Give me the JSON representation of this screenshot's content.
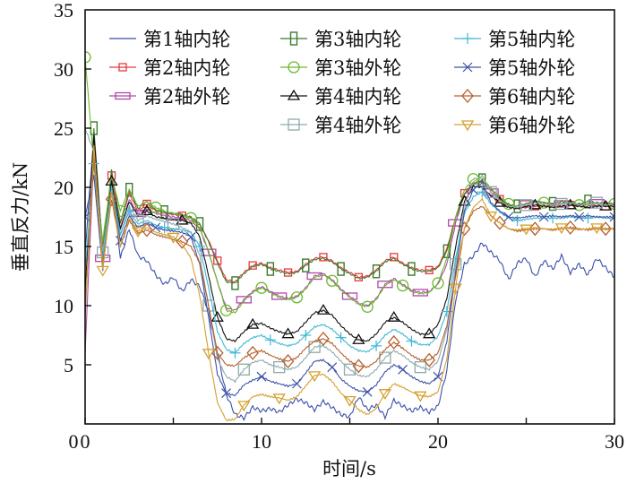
{
  "chart_data": {
    "type": "line",
    "title": "",
    "xlabel": "时间/s",
    "ylabel": "垂直反力/kN",
    "xlim": [
      0,
      30
    ],
    "ylim": [
      0,
      35
    ],
    "xticks": [
      0,
      10,
      20,
      30
    ],
    "xtick_labels": [
      "0",
      "10",
      "20",
      "30"
    ],
    "yticks": [
      5,
      10,
      15,
      20,
      25,
      30,
      35
    ],
    "ytick_labels": [
      "5",
      "10",
      "15",
      "20",
      "25",
      "30",
      "35"
    ],
    "ytick_label_zero": "0",
    "grid": false,
    "legend_position": "top",
    "x": [
      0,
      0.5,
      1,
      1.5,
      2,
      2.5,
      3,
      3.5,
      4,
      4.5,
      5,
      5.5,
      6,
      6.5,
      7,
      7.5,
      8,
      8.5,
      9,
      9.5,
      10,
      10.5,
      11,
      11.5,
      12,
      12.5,
      13,
      13.5,
      14,
      14.5,
      15,
      15.5,
      16,
      16.5,
      17,
      17.5,
      18,
      18.5,
      19,
      19.5,
      20,
      20.5,
      21,
      21.5,
      22,
      22.5,
      23,
      23.5,
      24,
      24.5,
      25,
      25.5,
      26,
      26.5,
      27,
      27.5,
      28,
      28.5,
      29,
      29.5,
      30
    ],
    "series": [
      {
        "name": "第1轴内轮",
        "color": "#3a4fa8",
        "marker": "none",
        "values": [
          14.5,
          24.5,
          13.5,
          21,
          14,
          16.5,
          14.2,
          13.8,
          12.6,
          11.8,
          12.4,
          11.2,
          12.2,
          11.6,
          9.5,
          6,
          2.5,
          0.8,
          0.5,
          1.4,
          1.1,
          1.3,
          1.0,
          1.6,
          2.1,
          1.8,
          1.2,
          1.9,
          1.4,
          0.8,
          0.6,
          2.3,
          1.2,
          1.6,
          0.6,
          2.0,
          1.5,
          1.1,
          1.4,
          1.0,
          1.5,
          4.5,
          10.5,
          13.5,
          14.2,
          15.3,
          14.5,
          13.8,
          12.2,
          13.6,
          14.0,
          12.4,
          13.8,
          13.1,
          14.2,
          12.8,
          13.5,
          12.6,
          14.0,
          13.2,
          12.4
        ]
      },
      {
        "name": "第2轴内轮",
        "color": "#e8383c",
        "marker": "square-small",
        "values": [
          10,
          24,
          15,
          21,
          17,
          19.5,
          18,
          18.6,
          18,
          17.8,
          17.7,
          17.6,
          17.4,
          16.8,
          15.5,
          13.8,
          12.2,
          12.0,
          12.8,
          13.4,
          13.6,
          13.2,
          13.0,
          12.8,
          12.9,
          13.5,
          14.0,
          14.1,
          13.8,
          13.2,
          12.8,
          12.4,
          12.5,
          13.0,
          13.8,
          14.1,
          13.6,
          13.2,
          13.0,
          13.0,
          13.3,
          14.8,
          17.5,
          19.5,
          20.4,
          20.5,
          19.8,
          19.0,
          18.4,
          18.2,
          18.3,
          18.4,
          18.5,
          18.4,
          18.4,
          18.5,
          18.4,
          18.4,
          18.5,
          18.4,
          18.5
        ]
      },
      {
        "name": "第2轴外轮",
        "color": "#b047a8",
        "marker": "rect-wide",
        "values": [
          6,
          23,
          14,
          20.5,
          16.5,
          19,
          17.8,
          18.2,
          17.8,
          17.6,
          17.5,
          17.4,
          17.2,
          16.5,
          14.5,
          12.0,
          9.8,
          9.6,
          10.5,
          11.2,
          11.6,
          11.2,
          10.8,
          10.6,
          10.8,
          11.5,
          12.5,
          12.7,
          12.2,
          11.4,
          10.8,
          10.2,
          10.0,
          10.6,
          11.8,
          12.3,
          11.8,
          11.3,
          11.1,
          11.2,
          11.8,
          13.5,
          17.0,
          19.4,
          20.2,
          20.5,
          19.6,
          19.0,
          18.5,
          18.4,
          18.6,
          18.8,
          18.7,
          18.6,
          18.6,
          18.7,
          18.6,
          18.6,
          18.7,
          18.6,
          18.6
        ]
      },
      {
        "name": "第3轴内轮",
        "color": "#3d7a2f",
        "marker": "rect-tall",
        "values": [
          9,
          25,
          14.5,
          21.5,
          17,
          19.8,
          18.2,
          18.8,
          18.1,
          17.9,
          17.8,
          17.7,
          17.5,
          16.9,
          15.4,
          13.6,
          12.0,
          11.9,
          12.7,
          13.3,
          13.5,
          13.1,
          12.9,
          12.7,
          12.8,
          13.4,
          13.9,
          14.0,
          13.7,
          13.1,
          12.7,
          12.3,
          12.4,
          12.9,
          13.7,
          14.0,
          13.5,
          13.1,
          12.9,
          12.9,
          13.2,
          14.6,
          17.4,
          19.4,
          20.3,
          20.6,
          19.9,
          19.1,
          18.5,
          18.4,
          18.6,
          18.8,
          18.7,
          18.6,
          18.8,
          18.7,
          18.6,
          18.8,
          18.7,
          18.6,
          18.6
        ]
      },
      {
        "name": "第3轴外轮",
        "color": "#6ab82e",
        "marker": "circle",
        "values": [
          31,
          22,
          15.5,
          21,
          18,
          19.8,
          18.4,
          18.8,
          18.3,
          18.0,
          17.8,
          17.6,
          17.4,
          16.6,
          14.6,
          12.0,
          9.6,
          9.4,
          10.4,
          11.1,
          11.5,
          11.1,
          10.7,
          10.5,
          10.7,
          11.4,
          12.4,
          12.6,
          12.1,
          11.3,
          10.7,
          10.1,
          9.9,
          10.5,
          11.7,
          12.2,
          11.7,
          11.2,
          11.0,
          11.1,
          11.9,
          14.0,
          17.5,
          19.8,
          20.7,
          20.8,
          19.9,
          19.2,
          18.6,
          18.4,
          18.6,
          18.8,
          18.7,
          18.5,
          18.6,
          18.6,
          18.5,
          18.6,
          18.6,
          18.5,
          18.6
        ]
      },
      {
        "name": "第4轴内轮",
        "color": "#111111",
        "marker": "triangle-up",
        "values": [
          11,
          24.5,
          14,
          20.5,
          16.5,
          18.8,
          17.6,
          18.0,
          17.5,
          17.4,
          17.3,
          17.2,
          17.0,
          15.8,
          12.5,
          9.0,
          7.2,
          7.0,
          7.8,
          8.4,
          8.5,
          8.1,
          7.8,
          7.6,
          7.8,
          8.6,
          9.4,
          9.6,
          9.2,
          8.3,
          7.6,
          7.1,
          7.0,
          7.6,
          8.6,
          9.0,
          8.6,
          8.0,
          7.6,
          7.6,
          8.4,
          10.6,
          15.0,
          18.8,
          20.1,
          20.0,
          19.3,
          18.7,
          18.3,
          18.2,
          18.4,
          18.5,
          18.4,
          18.3,
          18.4,
          18.5,
          18.4,
          18.3,
          18.4,
          18.4,
          18.4
        ]
      },
      {
        "name": "第4轴外轮",
        "color": "#8faaaa",
        "marker": "square",
        "values": [
          25,
          23,
          14.5,
          20,
          16,
          18.4,
          17.2,
          17.6,
          17.3,
          17.1,
          16.9,
          16.6,
          16.2,
          14.2,
          10.0,
          5.5,
          4.0,
          3.6,
          4.6,
          5.2,
          5.4,
          5.0,
          4.8,
          4.6,
          4.8,
          5.6,
          6.5,
          6.6,
          6.1,
          5.3,
          4.6,
          4.1,
          4.0,
          4.6,
          5.6,
          6.2,
          5.8,
          5.2,
          4.8,
          4.6,
          5.3,
          8.0,
          13.5,
          18.5,
          20.4,
          21.0,
          19.6,
          18.9,
          18.4,
          18.3,
          18.5,
          18.7,
          18.6,
          18.5,
          18.6,
          18.7,
          18.5,
          18.5,
          18.7,
          18.5,
          18.6
        ]
      },
      {
        "name": "第5轴内轮",
        "color": "#3fb7d6",
        "marker": "plus",
        "values": [
          13,
          22,
          14,
          20,
          16,
          18.0,
          16.9,
          17.2,
          16.8,
          16.6,
          16.5,
          16.4,
          16.2,
          15.0,
          11.5,
          7.8,
          6.3,
          6.0,
          6.8,
          7.3,
          7.5,
          7.1,
          6.8,
          6.6,
          6.8,
          7.5,
          8.2,
          8.4,
          8.0,
          7.3,
          6.6,
          6.2,
          6.1,
          6.6,
          7.5,
          8.0,
          7.6,
          7.0,
          6.7,
          6.7,
          7.4,
          9.5,
          14.0,
          17.8,
          19.2,
          19.6,
          18.6,
          17.9,
          17.4,
          17.2,
          17.3,
          17.4,
          17.4,
          17.4,
          17.4,
          17.5,
          17.4,
          17.4,
          17.5,
          17.4,
          17.4
        ]
      },
      {
        "name": "第5轴外轮",
        "color": "#3e53a6",
        "marker": "x",
        "values": [
          17.5,
          21,
          13,
          19.5,
          15.5,
          17.6,
          16.6,
          17.0,
          16.6,
          16.4,
          16.3,
          16.2,
          15.8,
          13.5,
          9.0,
          4.2,
          2.6,
          2.4,
          3.3,
          3.7,
          4.0,
          3.6,
          3.4,
          3.2,
          3.4,
          4.3,
          5.3,
          5.4,
          4.8,
          3.8,
          3.2,
          2.8,
          2.7,
          3.3,
          4.4,
          5.0,
          4.6,
          4.0,
          3.6,
          3.4,
          4.0,
          7.0,
          12.8,
          18.0,
          19.8,
          20.4,
          18.7,
          18.0,
          17.5,
          17.4,
          17.5,
          17.6,
          17.5,
          17.6,
          17.5,
          17.6,
          17.5,
          17.6,
          17.5,
          17.5,
          17.5
        ]
      },
      {
        "name": "第6轴内轮",
        "color": "#b5602e",
        "marker": "diamond",
        "values": [
          9.8,
          22.5,
          13.5,
          19,
          15,
          17.2,
          16.1,
          16.4,
          16.0,
          15.8,
          15.6,
          15.4,
          15.0,
          13.6,
          10.0,
          6.0,
          5.0,
          4.9,
          5.6,
          6.0,
          6.2,
          5.8,
          5.5,
          5.3,
          5.6,
          6.4,
          7.0,
          7.2,
          6.8,
          6.0,
          5.3,
          4.9,
          4.8,
          5.3,
          6.3,
          6.9,
          6.4,
          5.8,
          5.4,
          5.4,
          6.0,
          8.3,
          12.5,
          16.5,
          18.0,
          18.4,
          17.6,
          17.0,
          16.5,
          16.3,
          16.4,
          16.5,
          16.5,
          16.4,
          16.5,
          16.6,
          16.5,
          16.4,
          16.5,
          16.5,
          16.5
        ]
      },
      {
        "name": "第6轴外轮",
        "color": "#d4a030",
        "marker": "triangle-down",
        "values": [
          9.6,
          23.5,
          13,
          19.5,
          15,
          17.4,
          16.3,
          16.6,
          16.2,
          16.0,
          15.8,
          15.2,
          14.0,
          10.8,
          6.0,
          1.8,
          0.3,
          0.4,
          1.6,
          2.3,
          2.5,
          2.3,
          2.2,
          2.0,
          2.3,
          3.2,
          4.1,
          4.2,
          3.6,
          2.6,
          2.0,
          1.2,
          0.8,
          1.3,
          2.6,
          3.4,
          3.1,
          2.7,
          2.4,
          2.3,
          2.7,
          5.5,
          11.5,
          16.6,
          18.3,
          19.0,
          17.6,
          17.0,
          16.5,
          16.4,
          16.5,
          16.6,
          16.5,
          16.4,
          16.6,
          16.5,
          16.4,
          16.5,
          16.6,
          16.4,
          16.5
        ]
      }
    ]
  }
}
